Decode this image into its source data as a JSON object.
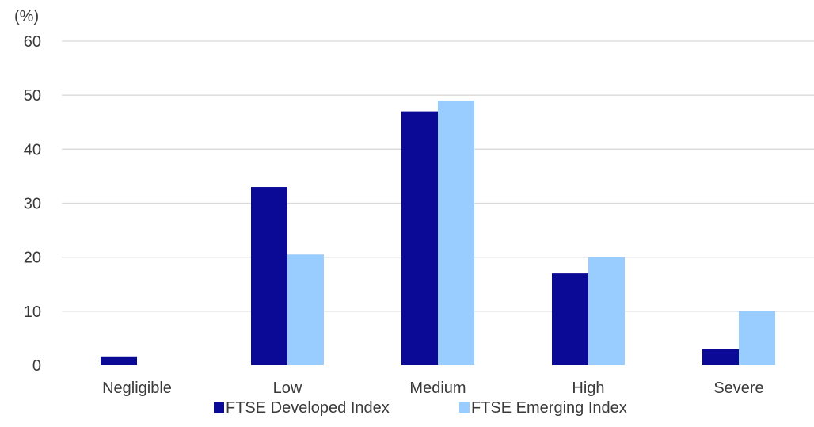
{
  "chart_data": {
    "type": "bar",
    "title": "",
    "xlabel": "",
    "ylabel": "(%)",
    "ylim": [
      0,
      60
    ],
    "yticks": [
      0,
      10,
      20,
      30,
      40,
      50,
      60
    ],
    "grid": true,
    "legend_position": "bottom",
    "categories": [
      "Negligible",
      "Low",
      "Medium",
      "High",
      "Severe"
    ],
    "series": [
      {
        "name": "FTSE Developed Index",
        "color": "#0a0a96",
        "values": [
          1.5,
          33,
          47,
          17,
          3
        ]
      },
      {
        "name": "FTSE Emerging Index",
        "color": "#99ccff",
        "values": [
          0,
          20.5,
          49,
          20,
          10
        ]
      }
    ]
  }
}
